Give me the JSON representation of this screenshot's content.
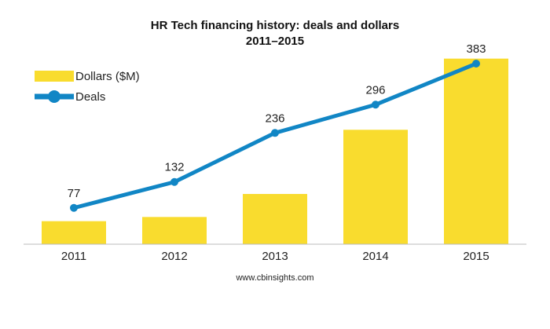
{
  "chart_data": {
    "type": "bar+line",
    "title": "HR Tech financing history: deals and dollars",
    "subtitle": "2011–2015",
    "categories": [
      "2011",
      "2012",
      "2013",
      "2014",
      "2015"
    ],
    "series": [
      {
        "name": "Dollars ($M)",
        "type": "bar",
        "color": "#F9DC2E",
        "values": [
          330,
          390,
          720,
          1640,
          2660
        ],
        "ylim": [
          0,
          2960
        ]
      },
      {
        "name": "Deals",
        "type": "line",
        "color": "#1186C5",
        "values": [
          77,
          132,
          236,
          296,
          383
        ],
        "labels": [
          "77",
          "132",
          "236",
          "296",
          "383"
        ],
        "ylim": [
          0,
          438
        ]
      }
    ],
    "legend_position": "top-left",
    "grid": false
  },
  "footer": {
    "source": "www.cbinsights.com"
  }
}
